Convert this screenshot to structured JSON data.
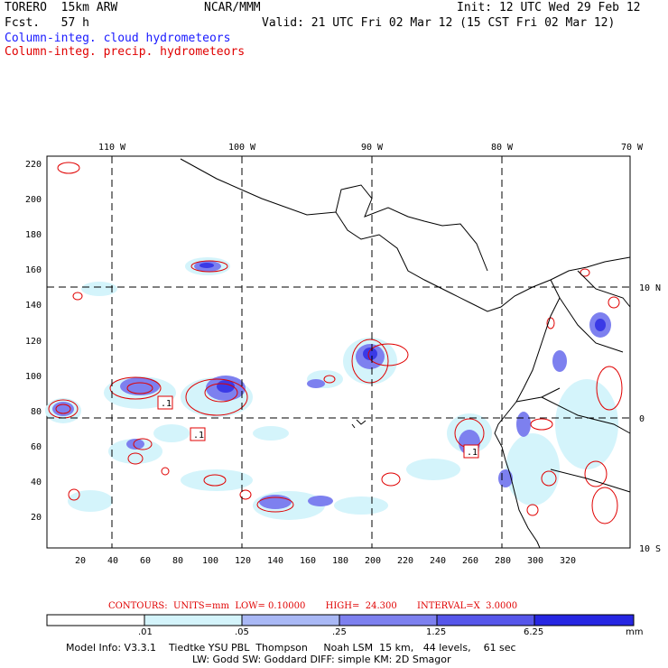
{
  "header": {
    "model_name": "TORERO  15km ARW",
    "forecast": "Fcst.   57 h",
    "center": "NCAR/MMM",
    "init": "Init: 12 UTC Wed 29 Feb 12",
    "valid": "Valid: 21 UTC Fri 02 Mar 12 (15 CST Fri 02 Mar 12)",
    "field1": "Column-integ. cloud hydrometeors",
    "field2": "Column-integ. precip. hydrometeors"
  },
  "colors": {
    "cloud_field": "#1a1aff",
    "precip_field": "#e00000",
    "bins": [
      "#ffffff",
      "#d4f4fb",
      "#a9b8f5",
      "#7d80ef",
      "#5656ea",
      "#2626e2"
    ]
  },
  "map": {
    "lon_labels": [
      "110 W",
      "100 W",
      "90 W",
      "80 W",
      "70 W"
    ],
    "lat_labels": [
      "10 N",
      "0",
      "10 S"
    ],
    "y_ticks": [
      "220",
      "200",
      "180",
      "160",
      "140",
      "120",
      "100",
      "80",
      "60",
      "40",
      "20"
    ],
    "x_ticks": [
      "20",
      "40",
      "60",
      "80",
      "100",
      "120",
      "140",
      "160",
      "180",
      "200",
      "220",
      "240",
      "260",
      "280",
      "300",
      "320"
    ],
    "box_labels": [
      ".1",
      ".1",
      ".1"
    ]
  },
  "contours_line": "CONTOURS:  UNITS=mm  LOW= 0.10000       HIGH=  24.300       INTERVAL=X  3.0000",
  "colorbar": {
    "labels": [
      ".01",
      ".05",
      ".25",
      "1.25",
      "6.25"
    ],
    "unit": "mm"
  },
  "footer": {
    "line1": "Model Info: V3.3.1    Tiedtke YSU PBL  Thompson     Noah LSM  15 km,   44 levels,    61 sec",
    "line2": "LW: Godd SW: Goddard DIFF: simple KM: 2D Smagor"
  }
}
